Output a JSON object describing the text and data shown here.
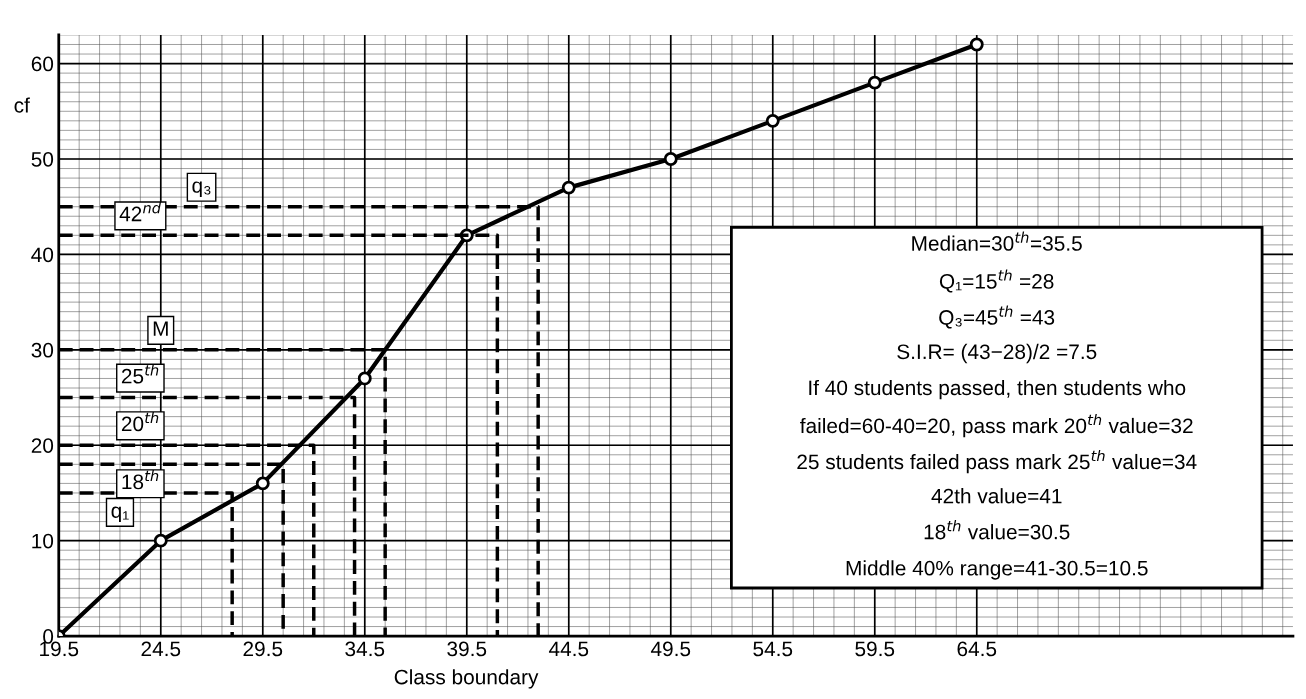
{
  "chart_data": {
    "type": "line",
    "xlabel": "Class boundary",
    "ylabel": "cf",
    "xlim": [
      19.5,
      80
    ],
    "xticks": [
      19.5,
      24.5,
      29.5,
      34.5,
      39.5,
      44.5,
      49.5,
      54.5,
      59.5,
      64.5
    ],
    "ylim": [
      0,
      63
    ],
    "yticks": [
      0,
      10,
      20,
      30,
      40,
      50,
      60
    ],
    "grid": true,
    "marker": "circle",
    "series": [
      {
        "color": "#000000",
        "x": [
          19.5,
          24.5,
          29.5,
          34.5,
          39.5,
          44.5,
          49.5,
          54.5,
          59.5,
          64.5
        ],
        "values": [
          0,
          10,
          16,
          27,
          42,
          47,
          50,
          54,
          58,
          62
        ]
      },
      {
        "color": "#000000",
        "line_style": "dashed",
        "marker": "none",
        "x": [
          19.5,
          43,
          43
        ],
        "values": [
          45,
          45,
          0
        ]
      },
      {
        "color": "#000000",
        "line_style": "dashed",
        "marker": "none",
        "x": [
          19.5,
          41,
          41
        ],
        "values": [
          42,
          42,
          0
        ]
      },
      {
        "color": "#000000",
        "line_style": "dashed",
        "marker": "none",
        "x": [
          19.5,
          35.5,
          35.5
        ],
        "values": [
          30,
          30,
          0
        ]
      },
      {
        "color": "#000000",
        "line_style": "dashed",
        "marker": "none",
        "x": [
          19.5,
          34,
          34
        ],
        "values": [
          25,
          25,
          0
        ]
      },
      {
        "color": "#000000",
        "line_style": "dashed",
        "marker": "none",
        "x": [
          19.5,
          32,
          32
        ],
        "values": [
          20,
          20,
          0
        ]
      },
      {
        "color": "#000000",
        "line_style": "dashed",
        "marker": "none",
        "x": [
          19.5,
          30.5,
          30.5
        ],
        "values": [
          18,
          18,
          0
        ]
      },
      {
        "color": "#000000",
        "line_style": "dashed",
        "marker": "none",
        "x": [
          19.5,
          28,
          28
        ],
        "values": [
          15,
          15,
          0
        ]
      }
    ],
    "annotations": [
      {
        "text": "q₃",
        "x": 26.5,
        "y": 45
      },
      {
        "text": "42$^{nd}$",
        "x": 23.5,
        "y": 42
      },
      {
        "text": "M",
        "x": 24.5,
        "y": 30
      },
      {
        "text": "25$^{th}$",
        "x": 23.5,
        "y": 25
      },
      {
        "text": "20$^{th}$",
        "x": 23.5,
        "y": 20
      },
      {
        "text": "18$^{th}$",
        "x": 23.5,
        "y": 18
      },
      {
        "text": "q₁",
        "x": 22.5,
        "y": 15
      },
      "Median=30$^{th}$=35.5",
      "Q₁=15$^{th}$ =28",
      "Q₃=45$^{th}$ =43",
      "S.I.R= (43−28)/2 =7.5",
      "If 40 students passed, then students who",
      "failed=60-40=20, pass mark 20$^{th}$ value=32",
      "25 students failed pass mark 25$^{th}$ value=34",
      "42th value=41",
      "18$^{th}$ value=30.5",
      "Middle 40% range=41-30.5=10.5"
    ]
  }
}
